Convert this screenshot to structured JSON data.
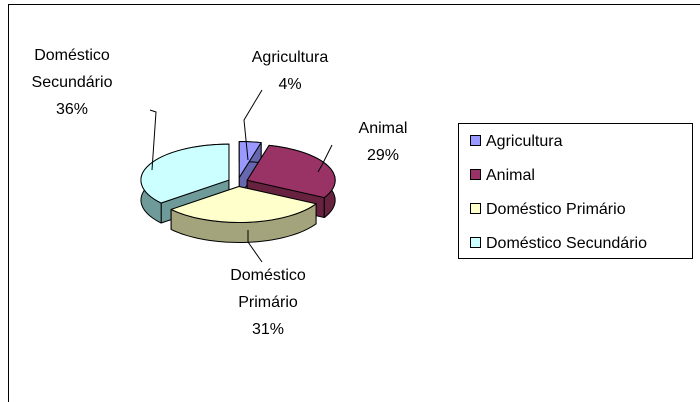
{
  "chart_data": {
    "type": "pie",
    "categories": [
      "Agricultura",
      "Animal",
      "Doméstico Primário",
      "Doméstico Secundário"
    ],
    "values": [
      4,
      29,
      31,
      36
    ],
    "value_labels": [
      "4%",
      "29%",
      "31%",
      "36%"
    ],
    "colors": [
      "#9999ff",
      "#993366",
      "#ffffcc",
      "#ccffff"
    ],
    "side_colors": [
      "#6767b0",
      "#66223f",
      "#a3a37c",
      "#6f9a9a"
    ],
    "legend": "right"
  }
}
